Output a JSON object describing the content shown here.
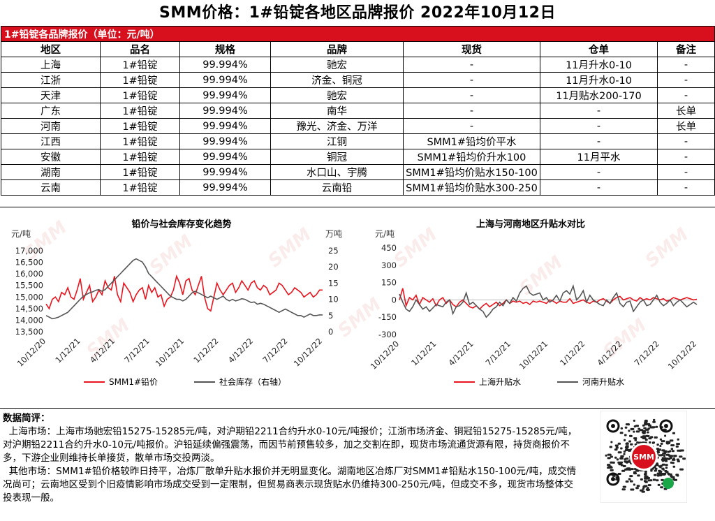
{
  "title": "SMM价格：1#铅锭各地区品牌报价  2022年10月12日",
  "table": {
    "caption": "1#铅锭各品牌报价（单位：元/吨）",
    "headers": [
      "地区",
      "品名",
      "规格",
      "品牌",
      "现货",
      "仓单",
      "备注"
    ],
    "rows": [
      [
        "上海",
        "1#铅锭",
        "99.994%",
        "驰宏",
        "-",
        "11月升水0-10",
        "-"
      ],
      [
        "江浙",
        "1#铅锭",
        "99.994%",
        "济金、铜冠",
        "-",
        "11月升水0-10",
        "-"
      ],
      [
        "天津",
        "1#铅锭",
        "99.994%",
        "驰宏",
        "-",
        "11月贴水200-170",
        "-"
      ],
      [
        "广东",
        "1#铅锭",
        "99.994%",
        "南华",
        "-",
        "-",
        "长单"
      ],
      [
        "河南",
        "1#铅锭",
        "99.994%",
        "豫光、济金、万洋",
        "-",
        "-",
        "长单"
      ],
      [
        "江西",
        "1#铅锭",
        "99.994%",
        "江铜",
        "SMM1#铅均价平水",
        "-",
        "-"
      ],
      [
        "安徽",
        "1#铅锭",
        "99.994%",
        "铜冠",
        "SMM1#铅均价升水100",
        "11月平水",
        "-"
      ],
      [
        "湖南",
        "1#铅锭",
        "99.994%",
        "水口山、宇腾",
        "SMM1#铅均价贴水150-100",
        "-",
        "-"
      ],
      [
        "云南",
        "1#铅锭",
        "99.994%",
        "云南铅",
        "SMM1#铅均价贴水300-250",
        "-",
        "-"
      ]
    ]
  },
  "chart_data": [
    {
      "type": "line",
      "title": "铅价与社会库存变化趋势",
      "ylabel": "元/吨",
      "y2label": "万吨",
      "ylim": [
        13500,
        17000
      ],
      "y2lim": [
        0,
        25
      ],
      "yticks": [
        "17,000",
        "16,500",
        "16,000",
        "15,500",
        "15,000",
        "14,500",
        "14,000",
        "13,500"
      ],
      "y2ticks": [
        "25",
        "20",
        "15",
        "10",
        "5",
        "0"
      ],
      "xticks": [
        "10/12/20",
        "1/12/21",
        "4/12/21",
        "7/12/21",
        "10/12/21",
        "1/12/22",
        "4/12/22",
        "7/12/22",
        "10/12/22"
      ],
      "series": [
        {
          "name": "SMM1#铅价",
          "axis": "left",
          "color": "#e8141e",
          "values": [
            14700,
            14500,
            14900,
            15000,
            14800,
            15200,
            15100,
            15400,
            15000,
            14900,
            15300,
            15800,
            14900,
            15200,
            15500,
            14800,
            15000,
            15300,
            15100,
            15700,
            15400,
            15300,
            15900,
            15100,
            14800,
            15600,
            15400,
            15200,
            14800,
            15100,
            15300,
            15400,
            14900,
            15500,
            15200,
            15400,
            15000,
            15100,
            14600,
            14900,
            15000,
            15300,
            15900,
            15600,
            15100,
            15700,
            15800,
            15300,
            15100,
            15500,
            15900,
            15000,
            14500,
            14400,
            15000,
            15600,
            15300,
            15100,
            15300,
            15500,
            15600,
            15200,
            15400,
            15700,
            15500,
            15300,
            15600,
            15700,
            15400,
            15300,
            15500,
            15400,
            15100,
            15200,
            15300,
            15600,
            15500,
            15300,
            15100,
            15200,
            15400,
            15300,
            15200,
            15000,
            15100,
            15200,
            15000,
            15100,
            15300,
            15300
          ]
        },
        {
          "name": "社会库存（右轴）",
          "axis": "right",
          "color": "#555555",
          "values": [
            5,
            4.5,
            4,
            4.2,
            4.5,
            5,
            5.5,
            6,
            7,
            8,
            9,
            10,
            11,
            11.5,
            12,
            12.3,
            12.8,
            13,
            12.5,
            13,
            14,
            15,
            16,
            17,
            18,
            19,
            20,
            21,
            22,
            22.5,
            22,
            21.5,
            20,
            18,
            17,
            16,
            15,
            14,
            13,
            12,
            11,
            10.5,
            10,
            10,
            9.5,
            10,
            11,
            12,
            12.5,
            12,
            11.5,
            11,
            10.5,
            11,
            10.5,
            10,
            10.5,
            11,
            10,
            9.5,
            10,
            9.5,
            9.8,
            10.2,
            10,
            9.5,
            9,
            9.2,
            8.5,
            8.8,
            8.5,
            8,
            7.5,
            7,
            6.5,
            6,
            6.5,
            7,
            6.5,
            6,
            5.5,
            5,
            5,
            4.5,
            5,
            5.5,
            5,
            5,
            5.2,
            5.2
          ]
        }
      ]
    },
    {
      "type": "line",
      "title": "上海与河南地区升贴水对比",
      "ylabel": "元/吨",
      "ylim": [
        -300,
        450
      ],
      "yticks": [
        "450",
        "300",
        "150",
        "0",
        "-150",
        "-300"
      ],
      "xticks": [
        "10/12/20",
        "1/12/21",
        "4/12/21",
        "7/12/21",
        "10/12/21",
        "1/12/22",
        "4/12/22",
        "7/12/22",
        "10/12/22"
      ],
      "series": [
        {
          "name": "上海升贴水",
          "color": "#e8141e",
          "values": [
            0,
            100,
            -50,
            20,
            0,
            40,
            -40,
            20,
            0,
            -20,
            10,
            -50,
            0,
            20,
            -30,
            0,
            -40,
            -60,
            -20,
            0,
            -30,
            -60,
            -70,
            -50,
            -80,
            -50,
            -30,
            -60,
            -40,
            -20,
            -50,
            -30,
            0,
            -30,
            -10,
            -20,
            -10,
            -30,
            -20,
            -40,
            -10,
            -20,
            -10,
            -20,
            -30,
            0,
            -10,
            -30,
            -10,
            -20,
            -20,
            10,
            -30,
            -20,
            -10,
            0,
            -20,
            -30,
            -10,
            -20,
            0,
            10,
            -10,
            -30,
            0,
            20,
            30,
            0,
            10,
            20,
            0,
            -10,
            20,
            0,
            10,
            0,
            20,
            10,
            0,
            10,
            -10,
            0,
            20,
            10,
            0,
            10,
            20,
            10,
            0,
            5
          ]
        },
        {
          "name": "河南升贴水",
          "color": "#555555",
          "values": [
            50,
            -20,
            -80,
            -100,
            -60,
            0,
            -40,
            -80,
            -60,
            -100,
            -70,
            -40,
            -50,
            -60,
            -20,
            0,
            -120,
            -60,
            -50,
            -20,
            60,
            -40,
            -20,
            -50,
            -80,
            -100,
            -150,
            -120,
            -80,
            -60,
            -20,
            -50,
            0,
            -30,
            20,
            -10,
            60,
            100,
            120,
            60,
            40,
            50,
            60,
            0,
            20,
            -20,
            0,
            40,
            -10,
            60,
            80,
            50,
            120,
            0,
            30,
            80,
            -20,
            40,
            0,
            -20,
            -40,
            -50,
            0,
            -30,
            20,
            60,
            -30,
            -60,
            -20,
            -10,
            -100,
            -60,
            -20,
            0,
            -50,
            -40,
            0,
            40,
            -20,
            -50,
            -30,
            0,
            -50,
            -20,
            0,
            -30,
            -60,
            -40,
            -20,
            -40
          ]
        }
      ]
    }
  ],
  "legend1": {
    "price": "SMM1#铅价",
    "stock": "社会库存（右轴）"
  },
  "legend2": {
    "sh": "上海升贴水",
    "hn": "河南升贴水"
  },
  "review": {
    "heading": "数据简评：",
    "p1": "上海市场：上海市场驰宏铅15275-15285元/吨，对沪期铅2211合约升水0-10元/吨报价；江浙市场济金、铜冠铅15275-15285元/吨，对沪期铅2211合约升水0-10元/吨报价。沪铅延续偏强震荡，而因节前预售较多，加之交割在即，现货市场流通货源有限，持货商报价不多，下游企业则维持长单接货，散单市场交投两淡。",
    "p2": "其他市场：SMM1#铅价格较昨日持平，冶炼厂散单升贴水报价并无明显变化。湖南地区冶炼厂对SMM1#铅贴水150-100元/吨，成交情况尚可；云南地区受到个旧疫情影响市场成交受到一定限制，但贸易商表示现货贴水仍维持300-250元/吨，但成交不多，现货市场整体交投表现一般。"
  },
  "qr": {
    "brand": "SMM"
  },
  "colors": {
    "accent": "#d8101e",
    "price_line": "#e8141e",
    "stock_line": "#555555"
  }
}
